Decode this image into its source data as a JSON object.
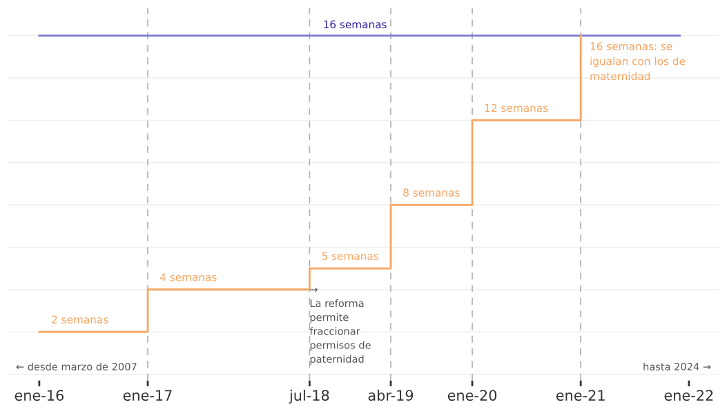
{
  "chart_data": {
    "type": "step",
    "series": [
      {
        "name": null,
        "color": "#7b78d0",
        "x": [
          "2016-01-01",
          "2021-12-01"
        ],
        "values": [
          16,
          16
        ]
      },
      {
        "name": null,
        "color": "#f7a560",
        "x": [
          "2016-01-01",
          "2017-01-01",
          "2018-07-01",
          "2019-04-01",
          "2020-01-01",
          "2021-01-01"
        ],
        "values": [
          2,
          4,
          5,
          8,
          12,
          16
        ],
        "value_labels": [
          "2 semanas",
          "4 semanas",
          "5 semanas",
          "8 semanas",
          "12 semanas",
          "16 semanas: se igualan con los de maternidad"
        ]
      }
    ],
    "annotations": [
      {
        "text": "16 semanas",
        "x": "2018-12-01",
        "y": 16
      },
      {
        "text": "→\nLa reforma\npermite\nfraccionar\npermisos de\npaternidad",
        "x": "2018-07-01",
        "y": 4
      },
      "← desde marzo de 2007",
      "hasta 2024 →"
    ],
    "xlim": [
      "2015-09-15",
      "2022-04-15"
    ],
    "xticks": [
      {
        "value": "2016-01-01",
        "label": "ene-16"
      },
      {
        "value": "2017-01-01",
        "label": "ene-17"
      },
      {
        "value": "2018-07-01",
        "label": "jul-18"
      },
      {
        "value": "2019-04-01",
        "label": "abr-19"
      },
      {
        "value": "2020-01-01",
        "label": "ene-20"
      },
      {
        "value": "2021-01-01",
        "label": "ene-21"
      },
      {
        "value": "2022-01-01",
        "label": "ene-22"
      }
    ],
    "ylim": [
      -0.3,
      17.3
    ],
    "yticks": [
      0,
      2,
      4,
      6,
      8,
      10,
      12,
      14,
      16
    ],
    "tick_labels": "x",
    "grid": "y",
    "ref_lines": [
      {
        "axis": "x",
        "value": "2017-01-01",
        "label": null,
        "color": "#b0b0b0",
        "line_style": "dashed"
      },
      {
        "axis": "x",
        "value": "2018-07-01",
        "label": null,
        "color": "#b0b0b0",
        "line_style": "dashed"
      },
      {
        "axis": "x",
        "value": "2019-04-01",
        "label": null,
        "color": "#b0b0b0",
        "line_style": "dashed"
      },
      {
        "axis": "x",
        "value": "2020-01-01",
        "label": null,
        "color": "#b0b0b0",
        "line_style": "dashed"
      },
      {
        "axis": "x",
        "value": "2021-01-01",
        "label": null,
        "color": "#b0b0b0",
        "line_style": "dashed"
      }
    ]
  }
}
